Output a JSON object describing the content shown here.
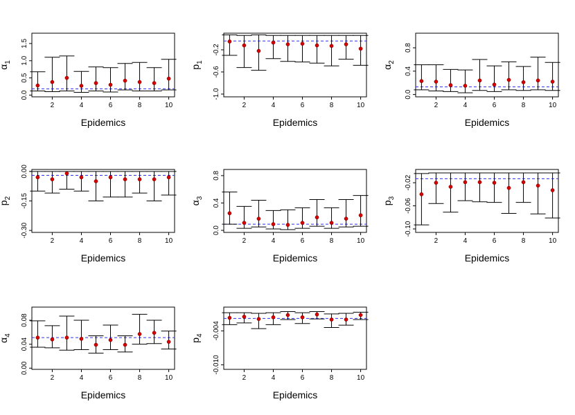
{
  "chart_data": [
    {
      "type": "scatter",
      "title": "",
      "xlabel": "Epidemics",
      "ylabel": "α",
      "ylabel_sub": "1",
      "x": [
        1,
        2,
        3,
        4,
        5,
        6,
        7,
        8,
        9,
        10
      ],
      "values": [
        0.28,
        0.38,
        0.5,
        0.27,
        0.35,
        0.3,
        0.42,
        0.38,
        0.35,
        0.48
      ],
      "lower": [
        0.12,
        0.1,
        0.12,
        0.08,
        0.12,
        0.09,
        0.15,
        0.12,
        0.12,
        0.15
      ],
      "upper": [
        0.68,
        1.1,
        1.14,
        0.69,
        0.82,
        0.8,
        0.92,
        0.95,
        0.8,
        1.04
      ],
      "reference": 0.18,
      "ylim": [
        -0.05,
        1.8
      ],
      "xlim": [
        0.6,
        10.4
      ],
      "yticks": [
        "0.0",
        "0.5",
        "1.0",
        "1.5"
      ],
      "ytick_values": [
        0,
        0.5,
        1.0,
        1.5
      ],
      "xticks": [
        "2",
        "4",
        "6",
        "8",
        "10"
      ]
    },
    {
      "type": "scatter",
      "title": "",
      "xlabel": "Epidemics",
      "ylabel": "p",
      "ylabel_sub": "1",
      "x": [
        1,
        2,
        3,
        4,
        5,
        6,
        7,
        8,
        9,
        10
      ],
      "values": [
        -0.05,
        -0.12,
        -0.22,
        -0.07,
        -0.1,
        -0.09,
        -0.12,
        -0.13,
        -0.1,
        -0.18
      ],
      "lower": [
        -0.3,
        -0.52,
        -0.57,
        -0.36,
        -0.41,
        -0.42,
        -0.44,
        -0.49,
        -0.37,
        -0.48
      ],
      "upper": [
        0.07,
        0.06,
        0.07,
        0.06,
        0.06,
        0.06,
        0.06,
        0.06,
        0.06,
        0.06
      ],
      "reference": -0.04,
      "ylim": [
        -1.05,
        0.1
      ],
      "xlim": [
        0.6,
        10.4
      ],
      "yticks": [
        "-1.0",
        "-0.6",
        "-0.2"
      ],
      "ytick_values": [
        -1.0,
        -0.6,
        -0.2
      ],
      "xticks": [
        "2",
        "4",
        "6",
        "8",
        "10"
      ]
    },
    {
      "type": "scatter",
      "title": "",
      "xlabel": "Epidemics",
      "ylabel": "α",
      "ylabel_sub": "2",
      "x": [
        1,
        2,
        3,
        4,
        5,
        6,
        7,
        8,
        9,
        10
      ],
      "values": [
        0.23,
        0.22,
        0.16,
        0.15,
        0.24,
        0.17,
        0.25,
        0.21,
        0.24,
        0.22
      ],
      "lower": [
        0.08,
        0.06,
        0.05,
        0.03,
        0.07,
        0.05,
        0.08,
        0.07,
        0.08,
        0.07
      ],
      "upper": [
        0.51,
        0.51,
        0.43,
        0.42,
        0.6,
        0.49,
        0.56,
        0.48,
        0.64,
        0.55
      ],
      "reference": 0.13,
      "ylim": [
        -0.04,
        1.05
      ],
      "xlim": [
        0.6,
        10.4
      ],
      "yticks": [
        "0.0",
        "0.4",
        "0.8"
      ],
      "ytick_values": [
        0,
        0.4,
        0.8
      ],
      "xticks": [
        "2",
        "4",
        "6",
        "8",
        "10"
      ]
    },
    {
      "type": "scatter",
      "title": "",
      "xlabel": "Epidemics",
      "ylabel": "p",
      "ylabel_sub": "2",
      "x": [
        1,
        2,
        3,
        4,
        5,
        6,
        7,
        8,
        9,
        10
      ],
      "values": [
        -0.03,
        -0.04,
        -0.01,
        -0.03,
        -0.05,
        -0.03,
        -0.04,
        -0.04,
        -0.04,
        -0.03
      ],
      "lower": [
        -0.1,
        -0.11,
        -0.09,
        -0.1,
        -0.15,
        -0.13,
        -0.13,
        -0.11,
        -0.15,
        -0.12
      ],
      "upper": [
        0.0,
        0.0,
        0.0,
        0.0,
        0.0,
        0.0,
        0.0,
        0.0,
        0.0,
        0.0
      ],
      "reference": -0.02,
      "ylim": [
        -0.31,
        0.01
      ],
      "xlim": [
        0.6,
        10.4
      ],
      "yticks": [
        "-0.30",
        "-0.15",
        "0.00"
      ],
      "ytick_values": [
        -0.3,
        -0.15,
        0.0
      ],
      "xticks": [
        "2",
        "4",
        "6",
        "8",
        "10"
      ]
    },
    {
      "type": "scatter",
      "title": "",
      "xlabel": "Epidemics",
      "ylabel": "α",
      "ylabel_sub": "3",
      "x": [
        1,
        2,
        3,
        4,
        5,
        6,
        7,
        8,
        9,
        10
      ],
      "values": [
        0.25,
        0.11,
        0.17,
        0.09,
        0.08,
        0.11,
        0.19,
        0.11,
        0.17,
        0.22
      ],
      "lower": [
        0.09,
        0.03,
        0.05,
        0.02,
        0.01,
        0.03,
        0.06,
        0.03,
        0.05,
        0.06
      ],
      "upper": [
        0.56,
        0.35,
        0.44,
        0.29,
        0.3,
        0.33,
        0.45,
        0.33,
        0.45,
        0.51
      ],
      "reference": 0.09,
      "ylim": [
        -0.03,
        0.89
      ],
      "xlim": [
        0.6,
        10.4
      ],
      "yticks": [
        "0.0",
        "0.4",
        "0.8"
      ],
      "ytick_values": [
        0,
        0.4,
        0.8
      ],
      "xticks": [
        "2",
        "4",
        "6",
        "8",
        "10"
      ]
    },
    {
      "type": "scatter",
      "title": "",
      "xlabel": "Epidemics",
      "ylabel": "p",
      "ylabel_sub": "3",
      "x": [
        1,
        2,
        3,
        4,
        5,
        6,
        7,
        8,
        9,
        10
      ],
      "values": [
        -0.04,
        -0.02,
        -0.027,
        -0.019,
        -0.019,
        -0.02,
        -0.029,
        -0.019,
        -0.025,
        -0.033
      ],
      "lower": [
        -0.093,
        -0.056,
        -0.071,
        -0.051,
        -0.053,
        -0.054,
        -0.073,
        -0.054,
        -0.074,
        -0.081
      ],
      "upper": [
        -0.004,
        -0.003,
        -0.003,
        -0.003,
        -0.003,
        -0.003,
        -0.003,
        -0.003,
        -0.003,
        -0.003
      ],
      "reference": -0.013,
      "ylim": [
        -0.106,
        0.003
      ],
      "xlim": [
        0.6,
        10.4
      ],
      "yticks": [
        "-0.10",
        "-0.06",
        "-0.02"
      ],
      "ytick_values": [
        -0.1,
        -0.06,
        -0.02
      ],
      "xticks": [
        "2",
        "4",
        "6",
        "8",
        "10"
      ]
    },
    {
      "type": "scatter",
      "title": "",
      "xlabel": "Epidemics",
      "ylabel": "α",
      "ylabel_sub": "4",
      "x": [
        1,
        2,
        3,
        4,
        5,
        6,
        7,
        8,
        9,
        10
      ],
      "values": [
        0.051,
        0.048,
        0.051,
        0.049,
        0.039,
        0.047,
        0.039,
        0.057,
        0.059,
        0.044
      ],
      "lower": [
        0.035,
        0.034,
        0.03,
        0.031,
        0.025,
        0.031,
        0.027,
        0.04,
        0.041,
        0.032
      ],
      "upper": [
        0.079,
        0.071,
        0.087,
        0.08,
        0.054,
        0.072,
        0.054,
        0.09,
        0.08,
        0.062
      ],
      "reference": 0.051,
      "ylim": [
        -0.002,
        0.102
      ],
      "xlim": [
        0.6,
        10.4
      ],
      "yticks": [
        "0.00",
        "0.04",
        "0.08"
      ],
      "ytick_values": [
        0,
        0.04,
        0.08
      ],
      "xticks": [
        "2",
        "4",
        "6",
        "8",
        "10"
      ]
    },
    {
      "type": "scatter",
      "title": "",
      "xlabel": "Epidemics",
      "ylabel": "p",
      "ylabel_sub": "4",
      "x": [
        1,
        2,
        3,
        4,
        5,
        6,
        7,
        8,
        9,
        10
      ],
      "values": [
        -0.0017,
        -0.0015,
        -0.0019,
        -0.0016,
        -0.0012,
        -0.0016,
        -0.0011,
        -0.002,
        -0.002,
        -0.0012
      ],
      "lower": [
        -0.0029,
        -0.0026,
        -0.0036,
        -0.0029,
        -0.002,
        -0.0027,
        -0.0019,
        -0.0034,
        -0.003,
        -0.002
      ],
      "upper": [
        -0.0008,
        -0.0008,
        -0.0009,
        -0.0008,
        -0.0006,
        -0.0008,
        -0.0006,
        -0.001,
        -0.0009,
        -0.0007
      ],
      "reference": -0.0018,
      "ylim": [
        -0.0108,
        0.0002
      ],
      "xlim": [
        0.6,
        10.4
      ],
      "yticks": [
        "-0.010",
        "-0.004"
      ],
      "ytick_values": [
        -0.01,
        -0.004
      ],
      "xticks": [
        "2",
        "4",
        "6",
        "8",
        "10"
      ]
    }
  ],
  "colors": {
    "point": "#d40000",
    "reference_line": "#2e2ef0"
  }
}
